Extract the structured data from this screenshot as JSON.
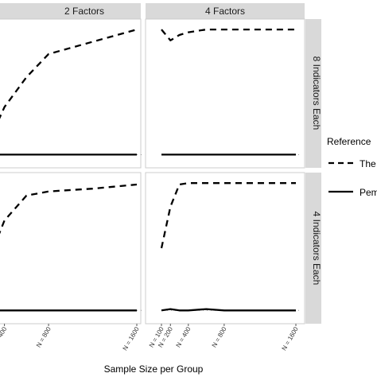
{
  "chart_data": {
    "type": "line",
    "xlabel": "Sample Size per Group",
    "ylabel": "",
    "x_ticks": [
      "N = 100",
      "N = 200",
      "N = 400",
      "N = 800",
      "N = 1600"
    ],
    "x": [
      100,
      200,
      300,
      400,
      600,
      800,
      1200,
      1600
    ],
    "ylim": [
      0,
      1
    ],
    "grid": false,
    "facets": {
      "columns": [
        "2 Factors",
        "4 Factors"
      ],
      "rows": [
        "8 Indicators Each",
        "4 Indicators Each"
      ]
    },
    "legend": {
      "title": "Reference",
      "placement": "right",
      "entries": [
        {
          "label": "The",
          "linetype": "dashed"
        },
        {
          "label": "Pem",
          "linetype": "solid"
        }
      ]
    },
    "panels": [
      {
        "column": "2 Factors",
        "row": "8 Indicators Each",
        "series": [
          {
            "linetype": "dashed",
            "values": [
              0.12,
              0.09,
              0.22,
              0.4,
              0.62,
              0.79,
              0.88,
              0.97
            ]
          },
          {
            "linetype": "solid",
            "values": [
              0.06,
              0.05,
              0.05,
              0.05,
              0.05,
              0.05,
              0.05,
              0.05
            ]
          }
        ]
      },
      {
        "column": "4 Factors",
        "row": "8 Indicators Each",
        "series": [
          {
            "linetype": "dashed",
            "values": [
              0.97,
              0.89,
              0.93,
              0.95,
              0.97,
              0.97,
              0.97,
              0.97
            ]
          },
          {
            "linetype": "solid",
            "values": [
              0.05,
              0.05,
              0.05,
              0.05,
              0.05,
              0.05,
              0.05,
              0.05
            ]
          }
        ]
      },
      {
        "column": "2 Factors",
        "row": "4 Indicators Each",
        "series": [
          {
            "linetype": "dashed",
            "values": [
              0.14,
              0.28,
              0.5,
              0.7,
              0.88,
              0.91,
              0.93,
              0.96
            ]
          },
          {
            "linetype": "solid",
            "values": [
              0.05,
              0.05,
              0.05,
              0.05,
              0.05,
              0.05,
              0.05,
              0.05
            ]
          }
        ]
      },
      {
        "column": "4 Factors",
        "row": "4 Indicators Each",
        "series": [
          {
            "linetype": "dashed",
            "values": [
              0.5,
              0.8,
              0.96,
              0.97,
              0.97,
              0.97,
              0.97,
              0.97
            ]
          },
          {
            "linetype": "solid",
            "values": [
              0.05,
              0.06,
              0.05,
              0.05,
              0.06,
              0.05,
              0.05,
              0.05
            ]
          }
        ]
      }
    ]
  }
}
